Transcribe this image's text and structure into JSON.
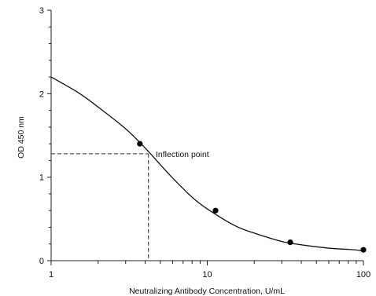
{
  "chart_data": {
    "type": "line",
    "title": "",
    "xlabel": "Neutralizing Antibody Concentration, U/mL",
    "ylabel": "OD 450 nm",
    "xscale": "log",
    "xlim": [
      1,
      100
    ],
    "ylim": [
      0,
      3
    ],
    "x_ticks": [
      1,
      10,
      100
    ],
    "x_tick_labels": [
      "1",
      "10",
      "100"
    ],
    "y_ticks": [
      0,
      1,
      2,
      3
    ],
    "y_tick_labels": [
      "0",
      "1",
      "2",
      "3"
    ],
    "grid": false,
    "legend": "none",
    "series": [
      {
        "kind": "fitted-curve",
        "x": [
          1,
          1.5,
          2,
          3,
          4,
          5,
          6,
          8,
          10,
          15,
          20,
          30,
          40,
          60,
          80,
          100
        ],
        "y": [
          2.2,
          2.01,
          1.84,
          1.58,
          1.35,
          1.15,
          0.99,
          0.76,
          0.62,
          0.42,
          0.33,
          0.23,
          0.19,
          0.15,
          0.135,
          0.12
        ]
      },
      {
        "kind": "data-points",
        "x": [
          3.7,
          11.3,
          34,
          100
        ],
        "y": [
          1.4,
          0.6,
          0.22,
          0.13
        ]
      }
    ],
    "annotations": [
      {
        "text": "Inflection point",
        "x": 4.2,
        "y": 1.28
      }
    ],
    "colors": {
      "line": "#111111",
      "marker": "#000000",
      "axis": "#222222"
    }
  }
}
